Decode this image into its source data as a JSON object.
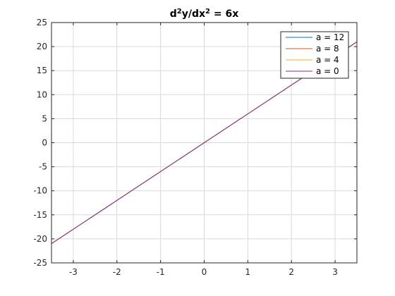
{
  "chart_data": {
    "type": "line",
    "title": {
      "base1": "d",
      "sup1": "2",
      "base2": "y/dx",
      "sup2": "2",
      "rest": " = 6x"
    },
    "xlabel": "",
    "ylabel": "",
    "xlim": [
      -3.5,
      3.5
    ],
    "ylim": [
      -25,
      25
    ],
    "xticks": [
      -3,
      -2,
      -1,
      0,
      1,
      2,
      3
    ],
    "yticks": [
      -25,
      -20,
      -15,
      -10,
      -5,
      0,
      5,
      10,
      15,
      20,
      25
    ],
    "grid": true,
    "legend_position": "top-right",
    "series": [
      {
        "name": "a = 12",
        "color": "#0072bd",
        "x": [
          -3.5,
          3.5
        ],
        "y": [
          -21,
          21
        ]
      },
      {
        "name": "a = 8",
        "color": "#d95319",
        "x": [
          -3.5,
          3.5
        ],
        "y": [
          -21,
          21
        ]
      },
      {
        "name": "a = 4",
        "color": "#edb120",
        "x": [
          -3.5,
          3.5
        ],
        "y": [
          -21,
          21
        ]
      },
      {
        "name": "a = 0",
        "color": "#7e2f8e",
        "x": [
          -3.5,
          3.5
        ],
        "y": [
          -21,
          21
        ]
      }
    ]
  }
}
